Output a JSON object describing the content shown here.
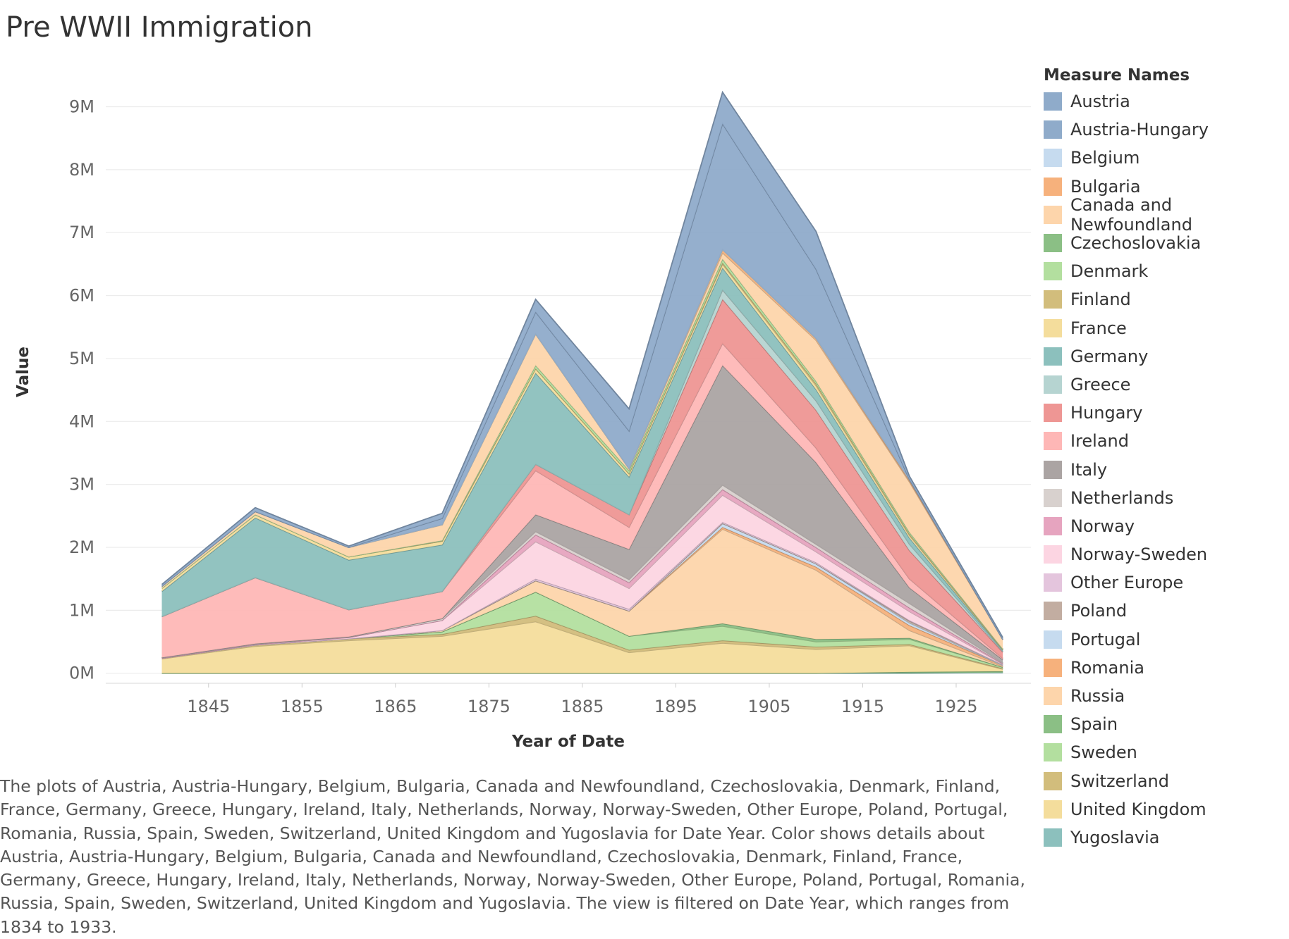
{
  "title": "Pre WWII Immigration",
  "caption": "The plots of Austria, Austria-Hungary, Belgium, Bulgaria, Canada and Newfoundland, Czechoslovakia, Denmark, Finland, France, Germany, Greece, Hungary, Ireland, Italy, Netherlands, Norway, Norway-Sweden, Other Europe, Poland, Portugal, Romania, Russia, Spain, Sweden, Switzerland, United Kingdom and Yugoslavia for Date Year.  Color shows details about Austria, Austria-Hungary, Belgium, Bulgaria, Canada and Newfoundland, Czechoslovakia, Denmark, Finland, France, Germany, Greece, Hungary, Ireland, Italy, Netherlands, Norway, Norway-Sweden, Other Europe, Poland, Portugal, Romania, Russia, Spain, Sweden, Switzerland, United Kingdom and Yugoslavia. The view is filtered on Date Year, which ranges from 1834 to 1933.",
  "chart_data": {
    "type": "area",
    "stacked": true,
    "xlabel": "Year of Date",
    "ylabel": "Value",
    "x": [
      1840,
      1850,
      1860,
      1870,
      1880,
      1890,
      1900,
      1910,
      1920,
      1930
    ],
    "x_ticks": [
      1845,
      1855,
      1865,
      1875,
      1885,
      1895,
      1905,
      1915,
      1925
    ],
    "y_ticks": [
      0,
      1000000,
      2000000,
      3000000,
      4000000,
      5000000,
      6000000,
      7000000,
      8000000,
      9000000
    ],
    "y_tick_labels": [
      "0M",
      "1M",
      "2M",
      "3M",
      "4M",
      "5M",
      "6M",
      "7M",
      "8M",
      "9M"
    ],
    "x_range": [
      1834,
      1933
    ],
    "y_range": [
      -160000,
      9800000
    ],
    "grid": "horizontal",
    "legend_title": "Measure Names",
    "legend_position": "right",
    "series": [
      {
        "name": "Yugoslavia",
        "color": "#8cc0bd",
        "values": [
          0,
          0,
          0,
          0,
          0,
          0,
          0,
          0,
          0,
          10000
        ]
      },
      {
        "name": "Czechoslovakia",
        "color": "#8bbf85",
        "values": [
          0,
          0,
          0,
          0,
          0,
          0,
          0,
          0,
          20000,
          20000
        ]
      },
      {
        "name": "United Kingdom",
        "color": "#f4dd9c",
        "values": [
          230000,
          430000,
          520000,
          590000,
          820000,
          330000,
          480000,
          380000,
          420000,
          35000
        ]
      },
      {
        "name": "Switzerland",
        "color": "#d2bd7c",
        "values": [
          10000,
          20000,
          30000,
          30000,
          90000,
          40000,
          40000,
          40000,
          20000,
          10000
        ]
      },
      {
        "name": "Sweden",
        "color": "#b3df9f",
        "values": [
          0,
          0,
          0,
          40000,
          380000,
          220000,
          230000,
          80000,
          80000,
          20000
        ]
      },
      {
        "name": "Spain",
        "color": "#8bbf85",
        "values": [
          0,
          0,
          0,
          0,
          0,
          0,
          40000,
          40000,
          20000,
          0
        ]
      },
      {
        "name": "Russia",
        "color": "#fdd5ab",
        "values": [
          0,
          0,
          0,
          20000,
          180000,
          400000,
          1500000,
          1100000,
          120000,
          10000
        ]
      },
      {
        "name": "Romania",
        "color": "#f6b17c",
        "values": [
          0,
          0,
          0,
          0,
          0,
          0,
          30000,
          50000,
          80000,
          20000
        ]
      },
      {
        "name": "Portugal",
        "color": "#c6dbef",
        "values": [
          0,
          0,
          0,
          0,
          0,
          0,
          60000,
          50000,
          40000,
          0
        ]
      },
      {
        "name": "Poland",
        "color": "#c2ada1",
        "values": [
          0,
          0,
          0,
          0,
          0,
          0,
          0,
          0,
          30000,
          10000
        ]
      },
      {
        "name": "Other Europe",
        "color": "#e4c5dd",
        "values": [
          0,
          0,
          0,
          0,
          30000,
          30000,
          20000,
          20000,
          10000,
          0
        ]
      },
      {
        "name": "Norway-Sweden",
        "color": "#fcd5e2",
        "values": [
          0,
          10000,
          20000,
          160000,
          590000,
          330000,
          430000,
          170000,
          140000,
          10000
        ]
      },
      {
        "name": "Norway",
        "color": "#e6a4bf",
        "values": [
          0,
          0,
          0,
          0,
          110000,
          90000,
          90000,
          70000,
          60000,
          10000
        ]
      },
      {
        "name": "Netherlands",
        "color": "#d8d1ce",
        "values": [
          10000,
          10000,
          10000,
          30000,
          50000,
          50000,
          70000,
          50000,
          70000,
          10000
        ]
      },
      {
        "name": "Italy",
        "color": "#aba4a3",
        "values": [
          0,
          0,
          0,
          0,
          270000,
          480000,
          1900000,
          1300000,
          250000,
          50000
        ]
      },
      {
        "name": "Ireland",
        "color": "#feb7b6",
        "values": [
          650000,
          1050000,
          430000,
          430000,
          700000,
          350000,
          350000,
          230000,
          140000,
          20000
        ]
      },
      {
        "name": "Hungary",
        "color": "#ee9694",
        "values": [
          0,
          0,
          0,
          0,
          100000,
          200000,
          700000,
          600000,
          450000,
          100000
        ]
      },
      {
        "name": "Greece",
        "color": "#b6d4d1",
        "values": [
          0,
          0,
          0,
          0,
          0,
          0,
          150000,
          150000,
          100000,
          10000
        ]
      },
      {
        "name": "Germany",
        "color": "#8cc0bd",
        "values": [
          400000,
          950000,
          790000,
          740000,
          1450000,
          600000,
          350000,
          180000,
          100000,
          20000
        ]
      },
      {
        "name": "France",
        "color": "#f4dd9c",
        "values": [
          50000,
          50000,
          50000,
          60000,
          70000,
          50000,
          60000,
          60000,
          40000,
          10000
        ]
      },
      {
        "name": "Finland",
        "color": "#d2bd7c",
        "values": [
          0,
          0,
          0,
          0,
          0,
          0,
          20000,
          30000,
          20000,
          0
        ]
      },
      {
        "name": "Denmark",
        "color": "#b3df9f",
        "values": [
          0,
          0,
          0,
          10000,
          50000,
          50000,
          60000,
          40000,
          30000,
          10000
        ]
      },
      {
        "name": "Canada and Newfoundland",
        "color": "#fdd5ab",
        "values": [
          30000,
          50000,
          150000,
          250000,
          500000,
          30000,
          100000,
          650000,
          800000,
          150000
        ]
      },
      {
        "name": "Bulgaria",
        "color": "#f6b17c",
        "values": [
          0,
          0,
          0,
          0,
          0,
          0,
          50000,
          30000,
          20000,
          0
        ]
      },
      {
        "name": "Belgium",
        "color": "#c6dbef",
        "values": [
          0,
          0,
          0,
          0,
          0,
          0,
          0,
          0,
          20000,
          0
        ]
      },
      {
        "name": "Austria-Hungary",
        "color": "#8fabca",
        "values": [
          0,
          0,
          0,
          100000,
          350000,
          600000,
          2000000,
          1100000,
          0,
          0
        ]
      },
      {
        "name": "Austria",
        "color": "#8fabca",
        "values": [
          30000,
          60000,
          20000,
          80000,
          200000,
          350000,
          500000,
          600000,
          50000,
          30000
        ]
      }
    ],
    "legend_order": [
      "Austria",
      "Austria-Hungary",
      "Belgium",
      "Bulgaria",
      "Canada and Newfoundland",
      "Czechoslovakia",
      "Denmark",
      "Finland",
      "France",
      "Germany",
      "Greece",
      "Hungary",
      "Ireland",
      "Italy",
      "Netherlands",
      "Norway",
      "Norway-Sweden",
      "Other Europe",
      "Poland",
      "Portugal",
      "Romania",
      "Russia",
      "Spain",
      "Sweden",
      "Switzerland",
      "United Kingdom",
      "Yugoslavia"
    ]
  }
}
